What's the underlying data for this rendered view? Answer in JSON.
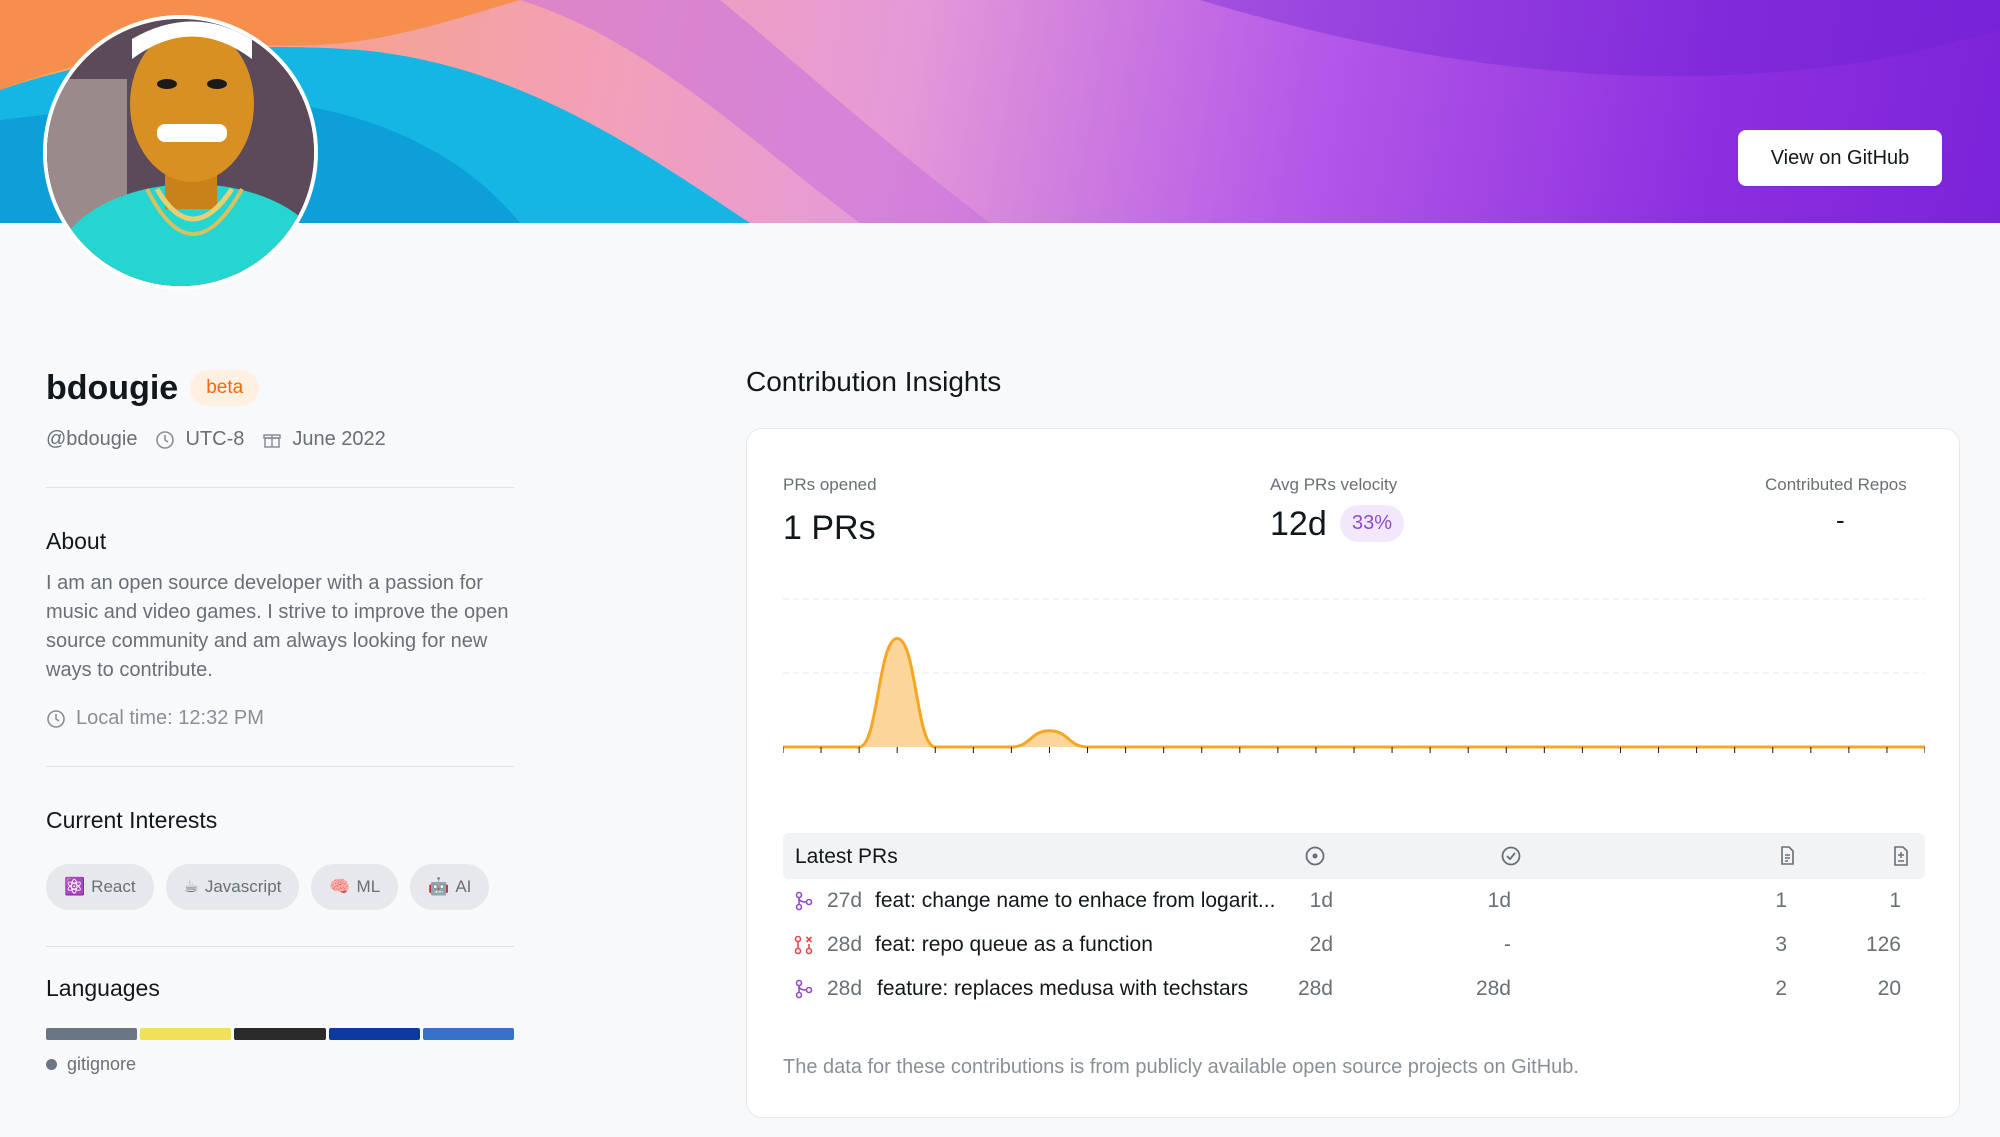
{
  "header": {
    "github_button_label": "View on GitHub"
  },
  "profile": {
    "name": "bdougie",
    "badge": "beta",
    "handle": "@bdougie",
    "timezone": "UTC-8",
    "joined": "June 2022"
  },
  "about": {
    "title": "About",
    "bio": "I am an open source developer with a passion for music and video games. I strive to improve the open source community and am always looking for new ways to contribute.",
    "local_time": "Local time: 12:32 PM"
  },
  "interests": {
    "title": "Current Interests",
    "items": [
      {
        "emoji": "⚛️",
        "label": "React"
      },
      {
        "emoji": "☕",
        "label": "Javascript"
      },
      {
        "emoji": "🧠",
        "label": "ML"
      },
      {
        "emoji": "🤖",
        "label": "AI"
      }
    ]
  },
  "languages": {
    "title": "Languages",
    "bar_colors": [
      "#6b7685",
      "#f0e05a",
      "#2b2b2b",
      "#0d3a9e",
      "#3572c6"
    ],
    "legend": [
      {
        "label": "gitignore",
        "color": "#6b7685"
      }
    ]
  },
  "insights": {
    "title": "Contribution Insights",
    "prs_opened_label": "PRs opened",
    "prs_opened_value": "1 PRs",
    "velocity_label": "Avg PRs velocity",
    "velocity_value": "12d",
    "velocity_badge": "33%",
    "repos_label": "Contributed Repos",
    "repos_value": "-",
    "latest_prs_title": "Latest PRs",
    "column_icons": [
      "open-icon",
      "merged-check-icon",
      "files-icon",
      "diff-icon"
    ],
    "rows": [
      {
        "status": "merged",
        "age": "27d",
        "title": "feat: change name to enhace from logarit...",
        "open": "1d",
        "merged": "1d",
        "files": "1",
        "lines": "1"
      },
      {
        "status": "closed",
        "age": "28d",
        "title": "feat: repo queue as a function",
        "open": "2d",
        "merged": "-",
        "files": "3",
        "lines": "126"
      },
      {
        "status": "merged",
        "age": "28d",
        "title": "feature: replaces medusa with techstars",
        "open": "28d",
        "merged": "28d",
        "files": "2",
        "lines": "20"
      }
    ],
    "footnote": "The data for these contributions is from publicly available open source projects on GitHub."
  },
  "chart_data": {
    "type": "area",
    "x": [
      0,
      1,
      2,
      3,
      4,
      5,
      6,
      7,
      8,
      9,
      10,
      11,
      12,
      13,
      14,
      15,
      16,
      17,
      18,
      19,
      20,
      21,
      22,
      23,
      24,
      25,
      26,
      27,
      28,
      29,
      30
    ],
    "values": [
      0,
      0,
      0,
      1,
      0,
      0,
      0,
      0.15,
      0,
      0,
      0,
      0,
      0,
      0,
      0,
      0,
      0,
      0,
      0,
      0,
      0,
      0,
      0,
      0,
      0,
      0,
      0,
      0,
      0,
      0,
      0
    ],
    "ylim": [
      0,
      1.5
    ],
    "grid": true,
    "color": "#f5a623",
    "fill": "#fbd59a"
  }
}
